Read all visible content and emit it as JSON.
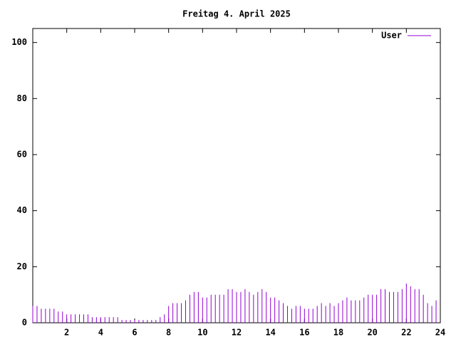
{
  "chart_data": {
    "type": "impulse",
    "title": "Freitag 4. April 2025",
    "x": [
      0,
      0.25,
      0.5,
      0.75,
      1,
      1.25,
      1.5,
      1.75,
      2,
      2.25,
      2.5,
      2.75,
      3,
      3.25,
      3.5,
      3.75,
      4,
      4.25,
      4.5,
      4.75,
      5,
      5.25,
      5.5,
      5.75,
      6,
      6.25,
      6.5,
      6.75,
      7,
      7.25,
      7.5,
      7.75,
      8,
      8.25,
      8.5,
      8.75,
      9,
      9.25,
      9.5,
      9.75,
      10,
      10.25,
      10.5,
      10.75,
      11,
      11.25,
      11.5,
      11.75,
      12,
      12.25,
      12.5,
      12.75,
      13,
      13.25,
      13.5,
      13.75,
      14,
      14.25,
      14.5,
      14.75,
      15,
      15.25,
      15.5,
      15.75,
      16,
      16.25,
      16.5,
      16.75,
      17,
      17.25,
      17.5,
      17.75,
      18,
      18.25,
      18.5,
      18.75,
      19,
      19.25,
      19.5,
      19.75,
      20,
      20.25,
      20.5,
      20.75,
      21,
      21.25,
      21.5,
      21.75,
      22,
      22.25,
      22.5,
      22.75,
      23,
      23.25,
      23.5,
      23.75
    ],
    "series": [
      {
        "name": "User",
        "color": "#9400d3",
        "values": [
          6,
          6,
          5,
          5,
          5,
          5,
          4,
          4,
          3,
          3,
          3,
          3,
          3,
          3,
          2,
          2,
          2,
          2,
          2,
          2,
          2,
          1,
          1,
          1,
          1,
          1,
          1,
          1,
          1,
          1,
          2,
          3,
          6,
          7,
          7,
          7,
          8,
          10,
          11,
          11,
          9,
          9,
          10,
          10,
          10,
          10,
          12,
          12,
          11,
          11,
          12,
          11,
          10,
          11,
          12,
          11,
          9,
          9,
          8,
          7,
          6,
          5,
          6,
          6,
          5,
          5,
          5,
          6,
          7,
          6,
          7,
          6,
          7,
          8,
          9,
          8,
          8,
          8,
          9,
          10,
          10,
          10,
          12,
          12,
          11,
          11,
          11,
          12,
          14,
          13,
          12,
          12,
          10,
          7,
          6,
          8
        ]
      }
    ],
    "xlim": [
      0,
      24
    ],
    "xticks": [
      2,
      4,
      6,
      8,
      10,
      12,
      14,
      16,
      18,
      20,
      22,
      24
    ],
    "ylim": [
      0,
      105
    ],
    "yticks": [
      0,
      20,
      40,
      60,
      80,
      100
    ],
    "legend": "top-right"
  }
}
